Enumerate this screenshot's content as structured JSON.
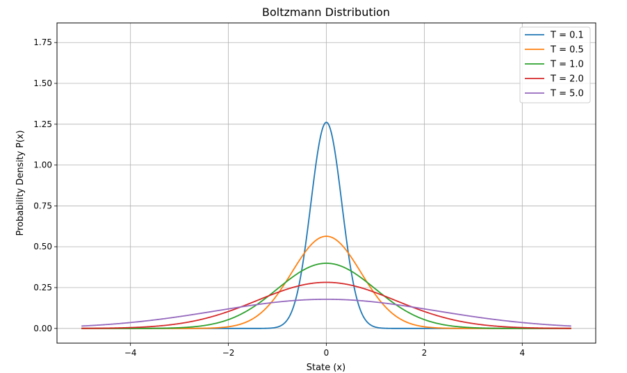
{
  "chart_data": {
    "type": "line",
    "title": "Boltzmann Distribution",
    "xlabel": "State (x)",
    "ylabel": "Probability Density P(x)",
    "xlim": [
      -5.5,
      5.5
    ],
    "ylim": [
      -0.09,
      1.87
    ],
    "x_ticks": [
      -4,
      -2,
      0,
      2,
      4
    ],
    "x_tick_labels": [
      "−4",
      "−2",
      "0",
      "2",
      "4"
    ],
    "y_ticks": [
      0,
      0.25,
      0.5,
      0.75,
      1.0,
      1.25,
      1.5,
      1.75
    ],
    "y_tick_labels": [
      "0.00",
      "0.25",
      "0.50",
      "0.75",
      "1.00",
      "1.25",
      "1.50",
      "1.75"
    ],
    "grid": true,
    "legend_position": "top-right",
    "x_domain": [
      -5,
      5
    ],
    "series": [
      {
        "name": "T = 0.1",
        "temperature": 0.1,
        "color": "#1f77b4"
      },
      {
        "name": "T = 0.5",
        "temperature": 0.5,
        "color": "#ff7f0e"
      },
      {
        "name": "T = 1.0",
        "temperature": 1.0,
        "color": "#2ca02c"
      },
      {
        "name": "T = 2.0",
        "temperature": 2.0,
        "color": "#d62728"
      },
      {
        "name": "T = 5.0",
        "temperature": 5.0,
        "color": "#9467bd"
      }
    ]
  }
}
